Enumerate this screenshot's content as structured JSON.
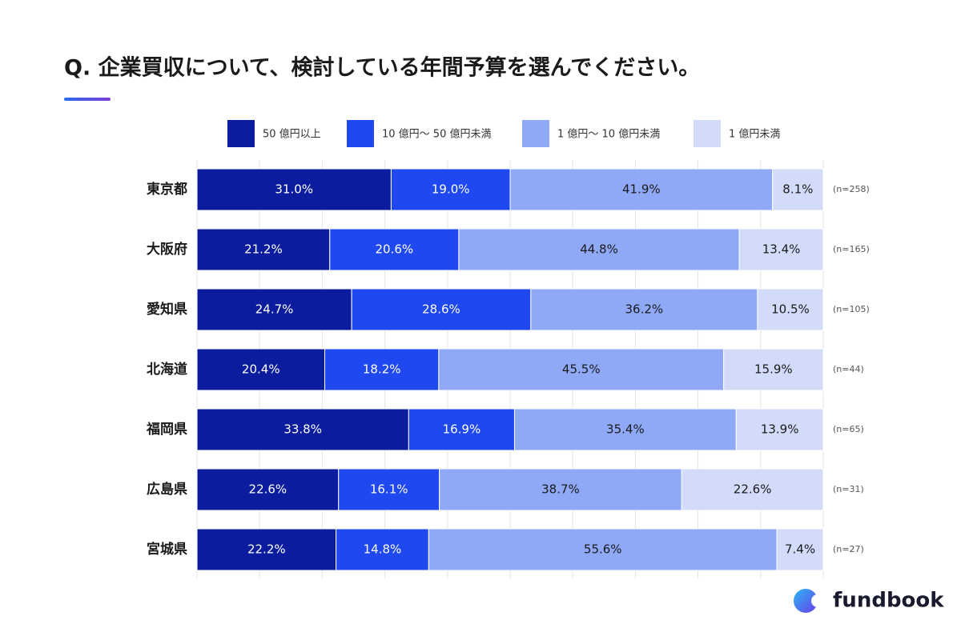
{
  "chart_data": {
    "type": "stacked-bar-horizontal",
    "title": "Q. 企業買収について、検討している年間予算を選んでください。",
    "categories": [
      "東京都",
      "大阪府",
      "愛知県",
      "北海道",
      "福岡県",
      "広島県",
      "宮城県"
    ],
    "series": [
      {
        "name": "50 億円以上",
        "color": "#0b1d9e",
        "label_color": "#ffffff",
        "values": [
          31.0,
          21.2,
          24.7,
          20.4,
          33.8,
          22.6,
          22.2
        ],
        "value_labels": [
          "31.0%",
          "21.2%",
          "24.7%",
          "20.4%",
          "33.8%",
          "22.6%",
          "22.2%"
        ]
      },
      {
        "name": "10 億円〜 50 億円未満",
        "color": "#1f48f0",
        "label_color": "#ffffff",
        "values": [
          19.0,
          20.6,
          28.6,
          18.2,
          16.9,
          16.1,
          14.8
        ],
        "value_labels": [
          "19.0%",
          "20.6%",
          "28.6%",
          "18.2%",
          "16.9%",
          "16.1%",
          "14.8%"
        ]
      },
      {
        "name": "1 億円〜 10 億円未満",
        "color": "#8fa9f7",
        "label_color": "#1a1a1a",
        "values": [
          41.9,
          44.8,
          36.2,
          45.5,
          35.4,
          38.7,
          55.6
        ],
        "value_labels": [
          "41.9%",
          "44.8%",
          "36.2%",
          "45.5%",
          "35.4%",
          "38.7%",
          "55.6%"
        ]
      },
      {
        "name": "1 億円未満",
        "color": "#d3dbfa",
        "label_color": "#1a1a1a",
        "values": [
          8.1,
          13.4,
          10.5,
          15.9,
          13.9,
          22.6,
          7.4
        ],
        "value_labels": [
          "8.1%",
          "13.4%",
          "10.5%",
          "15.9%",
          "13.9%",
          "22.6%",
          "7.4%"
        ]
      }
    ],
    "sample_sizes": [
      "(n=258)",
      "(n=165)",
      "(n=105)",
      "(n=44)",
      "(n=65)",
      "(n=31)",
      "(n=27)"
    ],
    "xlim": [
      0,
      100
    ],
    "xticks": [
      0,
      10,
      20,
      30,
      40,
      50,
      60,
      70,
      80,
      90,
      100
    ],
    "grid": true,
    "logo": "fundbook"
  }
}
